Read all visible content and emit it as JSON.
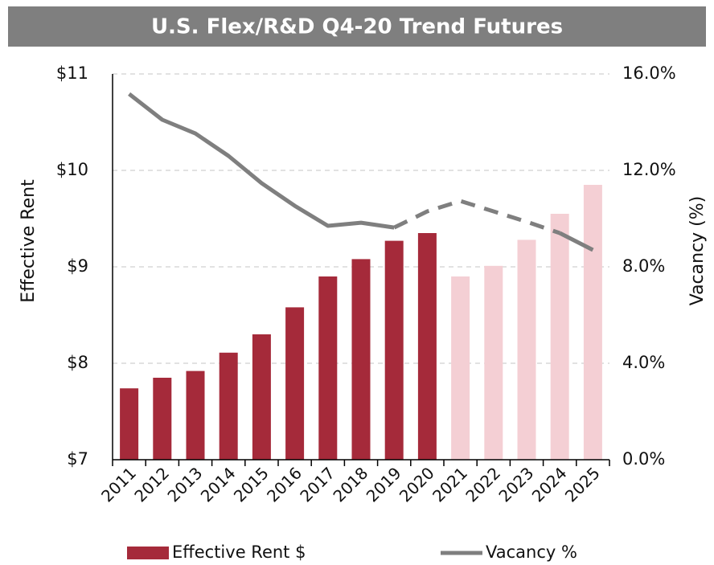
{
  "chart_data": {
    "type": "bar_line",
    "title": "U.S. Flex/R&D Q4-20 Trend Futures",
    "ylabel": "Effective Rent",
    "y2label": "Vacancy (%)",
    "categories": [
      "2011",
      "2012",
      "2013",
      "2014",
      "2015",
      "2016",
      "2017",
      "2018",
      "2019",
      "2020",
      "2021",
      "2022",
      "2023",
      "2024",
      "2025"
    ],
    "series": [
      {
        "name": "Effective Rent $",
        "type": "bar",
        "color": "#a52a3a",
        "colors": [
          "#a52a3a",
          "#a52a3a",
          "#a52a3a",
          "#a52a3a",
          "#a52a3a",
          "#a52a3a",
          "#a52a3a",
          "#a52a3a",
          "#a52a3a",
          "#a52a3a",
          "#f4cfd4",
          "#f4cfd4",
          "#f4cfd4",
          "#f4cfd4",
          "#f4cfd4"
        ],
        "values": [
          7.74,
          7.85,
          7.92,
          8.11,
          8.3,
          8.58,
          8.9,
          9.08,
          9.27,
          9.35,
          8.9,
          9.01,
          9.28,
          9.55,
          9.85
        ]
      },
      {
        "name": "Vacancy %",
        "type": "line",
        "axis": "y2",
        "color": "#7f7f7f",
        "dashed_segments": [
          [
            8,
            13
          ]
        ],
        "values": [
          15.17,
          14.1,
          13.53,
          12.6,
          11.47,
          10.53,
          9.7,
          9.83,
          9.63,
          10.3,
          10.73,
          10.3,
          9.87,
          9.4,
          8.7
        ]
      }
    ],
    "ylim": [
      7,
      11
    ],
    "yticks": [
      {
        "value": 7,
        "label": "$7"
      },
      {
        "value": 8,
        "label": "$8"
      },
      {
        "value": 9,
        "label": "$9"
      },
      {
        "value": 10,
        "label": "$10"
      },
      {
        "value": 11,
        "label": "$11"
      }
    ],
    "y2lim": [
      0,
      16
    ],
    "y2ticks": [
      {
        "value": 0,
        "label": "0.0%"
      },
      {
        "value": 4,
        "label": "4.0%"
      },
      {
        "value": 8,
        "label": "8.0%"
      },
      {
        "value": 12,
        "label": "12.0%"
      },
      {
        "value": 16,
        "label": "16.0%"
      }
    ],
    "grid": true,
    "legend": "bottom"
  }
}
